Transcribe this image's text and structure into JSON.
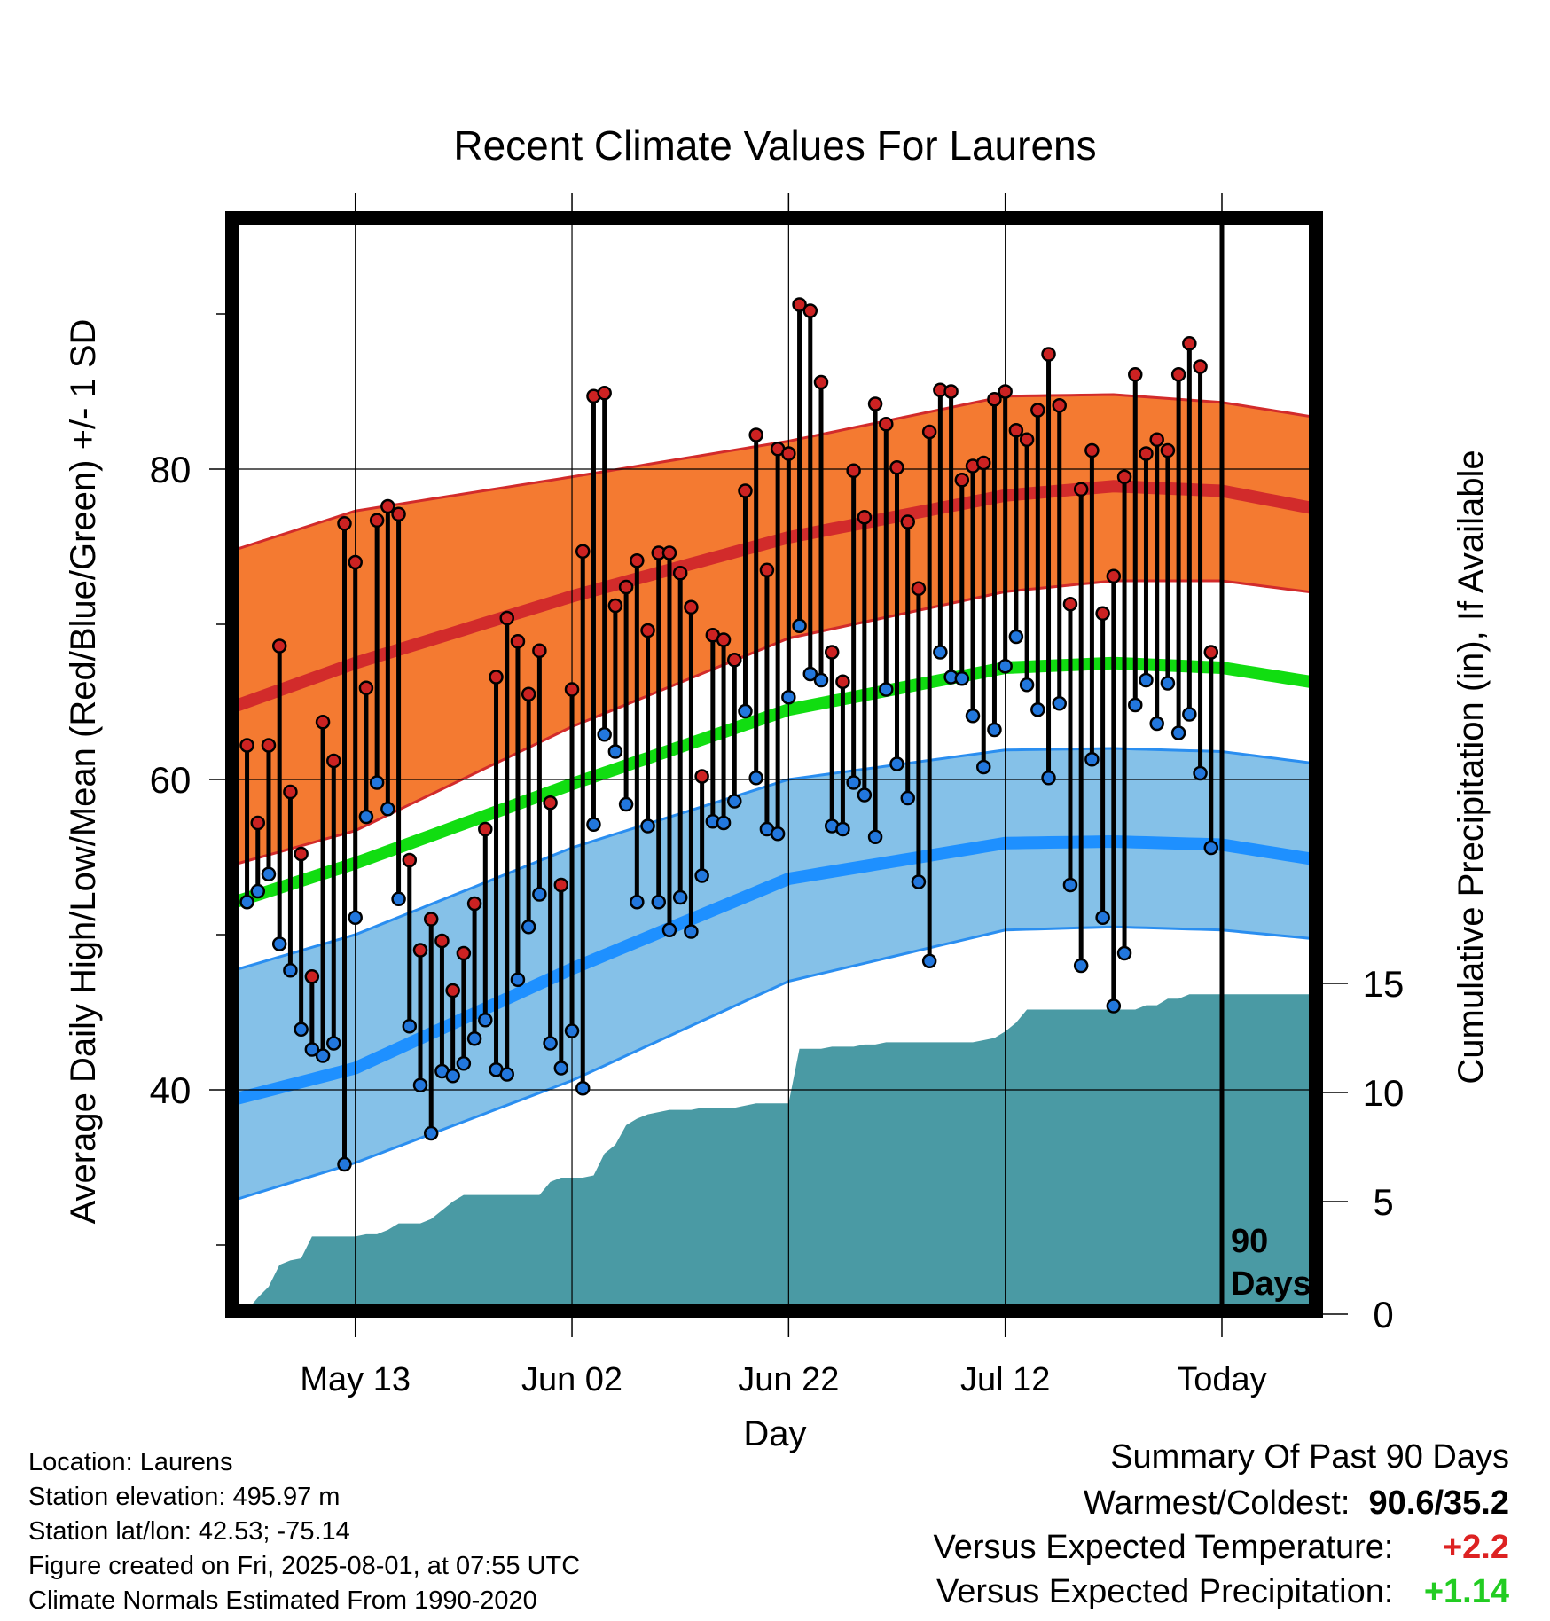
{
  "chart_data": {
    "type": "line",
    "title": "Recent Climate Values For Laurens",
    "xlabel": "Day",
    "ylabel": "Average Daily High/Low/Mean (Red/Blue/Green) +/- 1 SD",
    "y2label": "Cumulative Precipitation (in), If Available",
    "ylim": [
      26,
      96
    ],
    "y2lim": [
      0,
      35
    ],
    "x_ticks": [
      {
        "label": "May 13",
        "day": 10
      },
      {
        "label": "Jun 02",
        "day": 30
      },
      {
        "label": "Jun 22",
        "day": 50
      },
      {
        "label": "Jul 12",
        "day": 70
      },
      {
        "label": "Today",
        "day": 90
      }
    ],
    "y_ticks": [
      "40",
      "60",
      "80"
    ],
    "y2_ticks": [
      "0",
      "5",
      "10",
      "15"
    ],
    "marker_label": "90\nDays",
    "grid": true,
    "series": [
      {
        "name": "High",
        "color": "#cc2222",
        "values": [
          62.2,
          57.2,
          62.2,
          68.6,
          59.2,
          55.2,
          47.3,
          63.7,
          61.2,
          76.5,
          74.0,
          65.9,
          76.7,
          77.6,
          77.1,
          54.8,
          49.0,
          51.0,
          49.6,
          46.4,
          48.8,
          52.0,
          56.8,
          66.6,
          70.4,
          68.9,
          65.5,
          68.3,
          58.5,
          53.2,
          65.8,
          74.7,
          84.7,
          84.9,
          71.2,
          72.4,
          74.1,
          69.6,
          74.6,
          74.6,
          73.3,
          71.1,
          60.2,
          69.3,
          69.0,
          67.7,
          78.6,
          82.2,
          73.5,
          81.3,
          81.0,
          90.6,
          90.2,
          85.6,
          68.2,
          66.3,
          79.9,
          76.9,
          84.2,
          82.9,
          80.1,
          76.6,
          72.3,
          82.4,
          85.1,
          85.0,
          79.3,
          80.2,
          80.4,
          84.5,
          85.0,
          82.5,
          81.9,
          83.8,
          87.4,
          84.1,
          71.3,
          78.7,
          81.2,
          70.7,
          73.1,
          79.5,
          86.1,
          81.0,
          81.9,
          81.2,
          86.1,
          88.1,
          86.6,
          68.2
        ]
      },
      {
        "name": "Low",
        "color": "#2277dd",
        "values": [
          52.1,
          52.8,
          53.9,
          49.4,
          47.7,
          43.9,
          42.6,
          42.2,
          43.0,
          35.2,
          51.1,
          57.6,
          59.8,
          58.1,
          52.3,
          44.1,
          40.3,
          37.2,
          41.2,
          40.9,
          41.7,
          43.3,
          44.5,
          41.3,
          41.0,
          47.1,
          50.5,
          52.6,
          43.0,
          41.4,
          43.8,
          40.1,
          57.1,
          62.9,
          61.8,
          58.4,
          52.1,
          57.0,
          52.1,
          50.3,
          52.4,
          50.2,
          53.8,
          57.3,
          57.2,
          58.6,
          64.4,
          60.1,
          56.8,
          56.5,
          65.3,
          69.9,
          66.8,
          66.4,
          57.0,
          56.8,
          59.8,
          59.0,
          56.3,
          65.8,
          61.0,
          58.8,
          53.4,
          48.3,
          68.2,
          66.6,
          66.5,
          64.1,
          60.8,
          63.2,
          67.3,
          69.2,
          66.1,
          64.5,
          60.1,
          64.9,
          53.2,
          48.0,
          61.3,
          51.1,
          45.4,
          48.8,
          64.8,
          66.4,
          63.6,
          66.2,
          63.0,
          64.2,
          60.4,
          55.6
        ]
      },
      {
        "name": "Mean",
        "color": "#11dd11"
      },
      {
        "name": "Cumulative Precipitation",
        "color": "#4a9aa4",
        "values": [
          0.0,
          0.6,
          1.1,
          2.1,
          2.3,
          2.4,
          3.4,
          3.4,
          3.4,
          3.4,
          3.4,
          3.5,
          3.5,
          3.7,
          4.0,
          4.0,
          4.0,
          4.2,
          4.6,
          5.0,
          5.3,
          5.3,
          5.3,
          5.3,
          5.3,
          5.3,
          5.3,
          5.3,
          5.9,
          6.1,
          6.1,
          6.1,
          6.2,
          7.2,
          7.6,
          8.5,
          8.8,
          9.0,
          9.1,
          9.2,
          9.2,
          9.2,
          9.3,
          9.3,
          9.3,
          9.3,
          9.4,
          9.5,
          9.5,
          9.5,
          9.5,
          12.0,
          12.0,
          12.0,
          12.1,
          12.1,
          12.1,
          12.2,
          12.2,
          12.3,
          12.3,
          12.3,
          12.3,
          12.3,
          12.3,
          12.3,
          12.3,
          12.3,
          12.4,
          12.5,
          12.8,
          13.2,
          13.8,
          13.8,
          13.8,
          13.8,
          13.8,
          13.8,
          13.8,
          13.8,
          13.8,
          13.8,
          13.8,
          14.0,
          14.0,
          14.3,
          14.3,
          14.5,
          14.5,
          14.5,
          14.5,
          14.5,
          14.5,
          14.5,
          14.5,
          14.5,
          14.5,
          14.5,
          14.5,
          14.5
        ]
      }
    ],
    "normals": {
      "days": [
        -10,
        10,
        30,
        50,
        70,
        80,
        90,
        99
      ],
      "high_mean": [
        62.5,
        67.5,
        71.8,
        75.6,
        78.3,
        78.9,
        78.6,
        77.4
      ],
      "high_upper": [
        72.8,
        77.3,
        79.5,
        81.8,
        84.7,
        84.8,
        84.3,
        83.3
      ],
      "high_lower": [
        52.8,
        56.7,
        63.4,
        69.1,
        72.1,
        72.8,
        72.8,
        72.0
      ],
      "low_mean": [
        37.8,
        41.4,
        47.8,
        53.6,
        55.9,
        56.0,
        55.8,
        54.8
      ],
      "low_upper": [
        45.9,
        50.0,
        55.6,
        60.0,
        61.9,
        62.0,
        61.8,
        61.0
      ],
      "low_lower": [
        31.0,
        35.3,
        40.6,
        47.0,
        50.3,
        50.5,
        50.3,
        49.7
      ],
      "avg_mean": [
        50.1,
        54.6,
        59.7,
        64.5,
        67.2,
        67.5,
        67.2,
        66.2
      ]
    },
    "colors": {
      "high_band": "#f47a31",
      "high_edge": "#d22b2b",
      "high_line": "#d22b2b",
      "low_band": "#85c1e8",
      "low_edge": "#2a8ef0",
      "low_line": "#1e90ff",
      "mean_line": "#11dd11",
      "precip": "#4a9aa4",
      "frame": "#000000"
    }
  },
  "info": {
    "location": "Location: Laurens",
    "elevation": "Station elevation: 495.97 m",
    "latlon": "Station lat/lon: 42.53; -75.14",
    "created": "Figure created on Fri, 2025-08-01, at 07:55 UTC",
    "normals": "Climate Normals Estimated From 1990-2020"
  },
  "summary": {
    "heading": "Summary Of Past 90 Days",
    "warm_cold_label": "Warmest/Coldest:",
    "warm_cold_value": "90.6/35.2",
    "temp_label": "Versus Expected Temperature:",
    "temp_value": "+2.2",
    "temp_color": "#dd2222",
    "precip_label": "Versus Expected Precipitation:",
    "precip_value": "+1.14",
    "precip_color": "#22cc22"
  }
}
